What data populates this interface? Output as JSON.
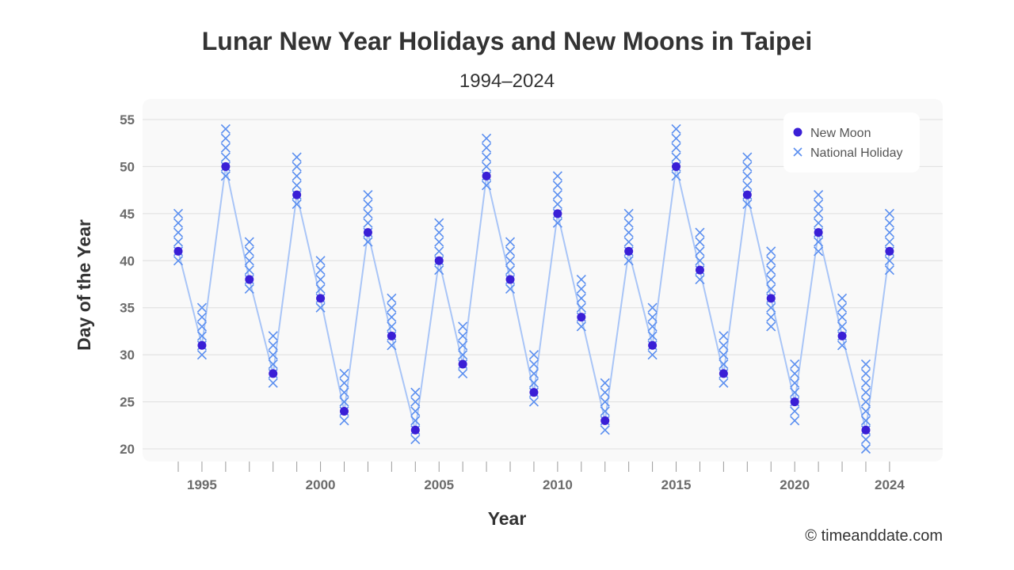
{
  "chart_data": {
    "type": "scatter",
    "title": "Lunar New Year Holidays and New Moons in Taipei",
    "subtitle": "1994–2024",
    "xlabel": "Year",
    "ylabel": "Day of the Year",
    "xlim": [
      1993,
      2026
    ],
    "ylim": [
      19,
      56
    ],
    "x_ticks": [
      1995,
      2000,
      2005,
      2010,
      2015,
      2020,
      2024
    ],
    "y_ticks": [
      20,
      25,
      30,
      35,
      40,
      45,
      50,
      55
    ],
    "grid": true,
    "legend_position": "top-right",
    "colors": {
      "new_moon": "#3a1fd6",
      "holiday": "#5b8ff0",
      "line": "#a9c5f7",
      "plot_bg": "#f9f9f9"
    },
    "years": [
      1994,
      1995,
      1996,
      1997,
      1998,
      1999,
      2000,
      2001,
      2002,
      2003,
      2004,
      2005,
      2006,
      2007,
      2008,
      2009,
      2010,
      2011,
      2012,
      2013,
      2014,
      2015,
      2016,
      2017,
      2018,
      2019,
      2020,
      2021,
      2022,
      2023,
      2024
    ],
    "series": [
      {
        "name": "New Moon",
        "marker": "circle",
        "values": [
          41,
          31,
          50,
          38,
          28,
          47,
          36,
          24,
          43,
          32,
          22,
          40,
          29,
          49,
          38,
          26,
          45,
          34,
          23,
          41,
          31,
          50,
          39,
          28,
          47,
          36,
          25,
          43,
          32,
          22,
          41
        ]
      },
      {
        "name": "National Holiday",
        "marker": "x",
        "ranges": [
          [
            40,
            45
          ],
          [
            30,
            35
          ],
          [
            49,
            54
          ],
          [
            37,
            42
          ],
          [
            27,
            32
          ],
          [
            46,
            51
          ],
          [
            35,
            40
          ],
          [
            23,
            28
          ],
          [
            42,
            47
          ],
          [
            31,
            36
          ],
          [
            21,
            26
          ],
          [
            39,
            44
          ],
          [
            28,
            33
          ],
          [
            48,
            53
          ],
          [
            37,
            42
          ],
          [
            25,
            30
          ],
          [
            44,
            49
          ],
          [
            33,
            38
          ],
          [
            22,
            27
          ],
          [
            40,
            45
          ],
          [
            30,
            35
          ],
          [
            49,
            54
          ],
          [
            38,
            43
          ],
          [
            27,
            32
          ],
          [
            46,
            51
          ],
          [
            33,
            41
          ],
          [
            23,
            29
          ],
          [
            41,
            47
          ],
          [
            31,
            36
          ],
          [
            20,
            29
          ],
          [
            39,
            45
          ]
        ]
      }
    ]
  },
  "credit": "© timeanddate.com"
}
